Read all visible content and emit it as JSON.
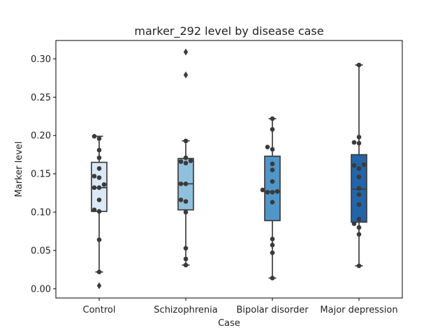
{
  "chart_data": {
    "type": "box",
    "title": "marker_292 level by disease case",
    "xlabel": "Case",
    "ylabel": "Marker level",
    "categories": [
      "Control",
      "Schizophrenia",
      "Bipolar disorder",
      "Major depression"
    ],
    "ylim": [
      -0.012,
      0.324
    ],
    "yticks": [
      "0.00",
      "0.05",
      "0.10",
      "0.15",
      "0.20",
      "0.25",
      "0.30"
    ],
    "box_colors": [
      "#dbe9f6",
      "#8fc1de",
      "#5196c8",
      "#2464a8"
    ],
    "line_color": "#3d3d3d",
    "point_color": "#3a3a3a",
    "boxes": [
      {
        "q1": 0.101,
        "median": 0.132,
        "q3": 0.165,
        "whisker_low": 0.022,
        "whisker_high": 0.199,
        "fliers": [
          0.004
        ]
      },
      {
        "q1": 0.103,
        "median": 0.137,
        "q3": 0.17,
        "whisker_low": 0.031,
        "whisker_high": 0.193,
        "fliers": [
          0.309,
          0.279
        ]
      },
      {
        "q1": 0.089,
        "median": 0.127,
        "q3": 0.173,
        "whisker_low": 0.014,
        "whisker_high": 0.222,
        "fliers": []
      },
      {
        "q1": 0.087,
        "median": 0.13,
        "q3": 0.175,
        "whisker_low": 0.03,
        "whisker_high": 0.292,
        "fliers": []
      }
    ],
    "points": [
      [
        0.199,
        0.196,
        0.181,
        0.171,
        0.157,
        0.147,
        0.145,
        0.136,
        0.132,
        0.132,
        0.116,
        0.103,
        0.101,
        0.064,
        0.022
      ],
      [
        0.193,
        0.171,
        0.167,
        0.166,
        0.164,
        0.137,
        0.137,
        0.116,
        0.114,
        0.1,
        0.053,
        0.039,
        0.031
      ],
      [
        0.222,
        0.208,
        0.185,
        0.182,
        0.163,
        0.155,
        0.14,
        0.129,
        0.127,
        0.126,
        0.126,
        0.113,
        0.065,
        0.057,
        0.047,
        0.014
      ],
      [
        0.292,
        0.198,
        0.191,
        0.19,
        0.162,
        0.161,
        0.157,
        0.146,
        0.131,
        0.123,
        0.11,
        0.091,
        0.085,
        0.08,
        0.071,
        0.03
      ]
    ],
    "grid": false,
    "legend": false
  }
}
